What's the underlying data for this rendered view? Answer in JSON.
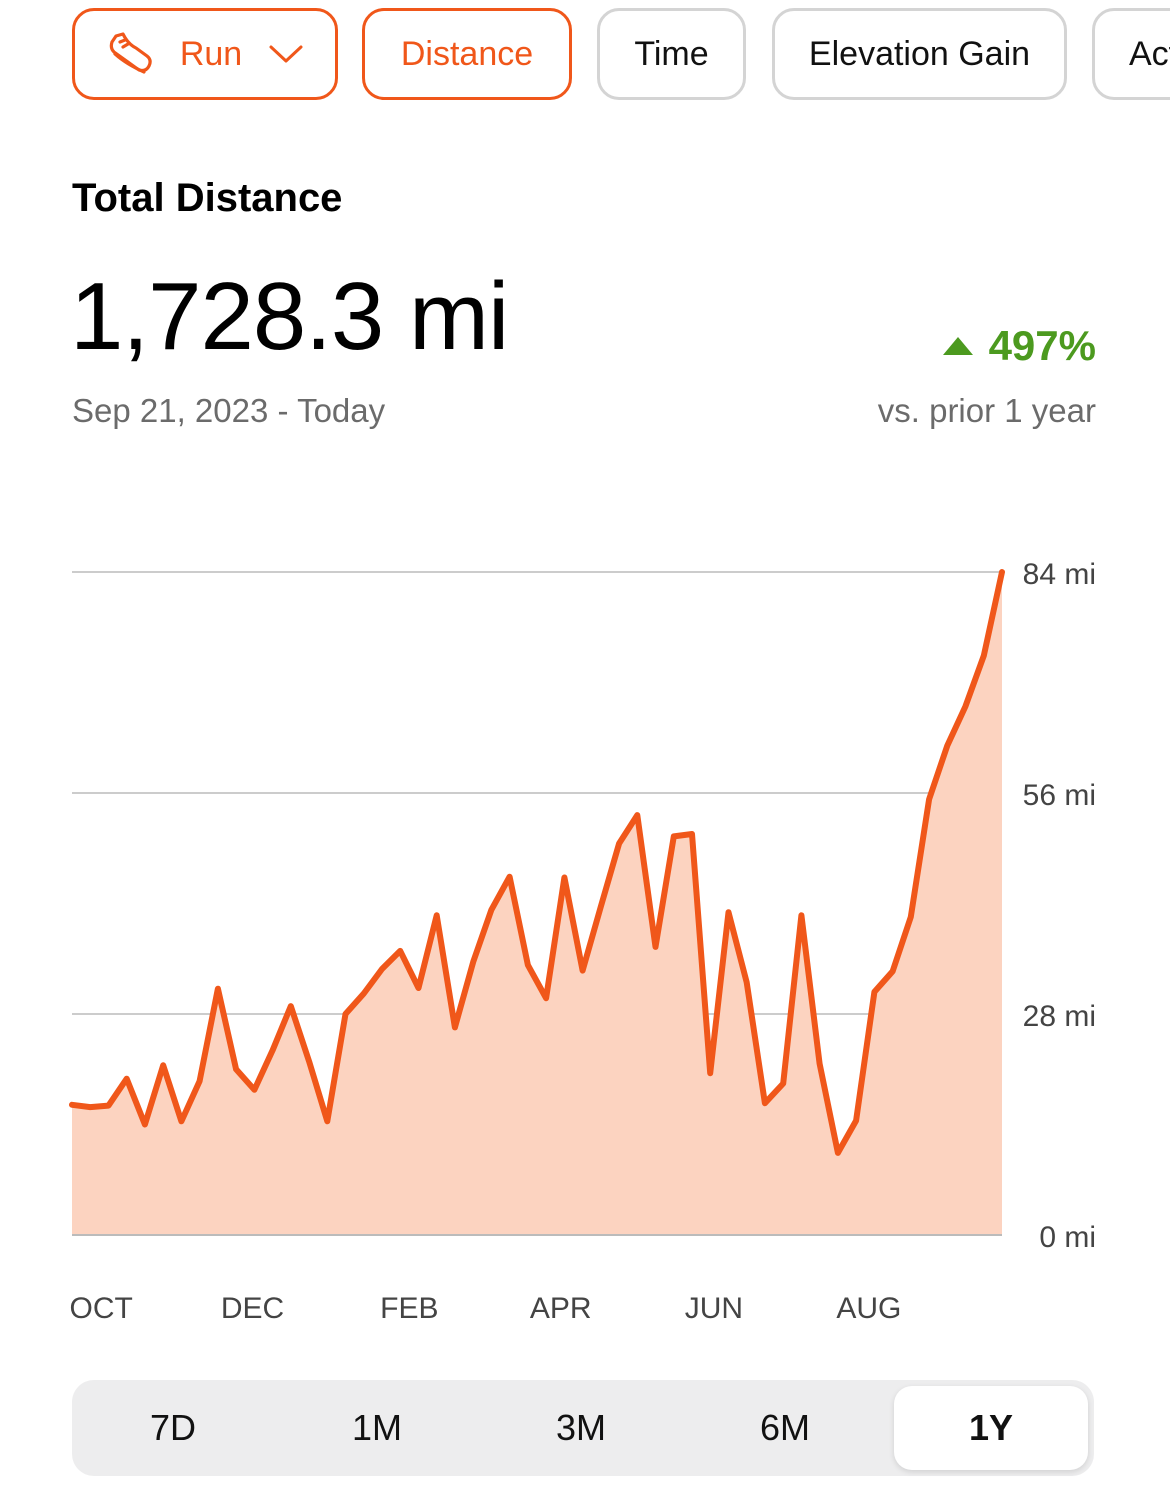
{
  "filters": {
    "sport_label": "Run",
    "sport_icon": "running-shoe-icon",
    "tabs": [
      "Distance",
      "Time",
      "Elevation Gain",
      "Activities"
    ],
    "active_tab": "Distance"
  },
  "summary": {
    "title": "Total Distance",
    "total": "1,728.3 mi",
    "date_range": "Sep 21, 2023 - Today",
    "change": "497%",
    "change_direction": "up",
    "comparison": "vs. prior 1 year"
  },
  "colors": {
    "accent": "#f0571a",
    "fill": "#fcd3c0",
    "positive": "#4c9a1f",
    "grid": "#cccccc"
  },
  "chart_data": {
    "type": "area",
    "ylim": [
      0,
      84
    ],
    "y_ticks": [
      "0 mi",
      "28 mi",
      "56 mi",
      "84 mi"
    ],
    "x_labels": [
      "OCT",
      "DEC",
      "FEB",
      "APR",
      "JUN",
      "AUG"
    ],
    "x_label_week_index": [
      1.6,
      9.9,
      18.5,
      26.8,
      35.2,
      43.7
    ],
    "grid": true,
    "unit": "mi",
    "values": [
      16.5,
      16.2,
      16.4,
      19.8,
      14.0,
      21.5,
      14.4,
      19.5,
      31.2,
      21.0,
      18.4,
      23.4,
      29.0,
      22.0,
      14.4,
      28.0,
      30.6,
      33.7,
      36.0,
      31.3,
      40.5,
      26.3,
      34.6,
      41.2,
      45.4,
      34.2,
      30.0,
      45.3,
      33.5,
      41.6,
      49.6,
      53.2,
      36.5,
      50.5,
      50.8,
      20.5,
      40.9,
      32.0,
      16.7,
      19.2,
      40.5,
      21.7,
      10.4,
      14.5,
      30.8,
      33.4,
      40.3,
      55.2,
      62.0,
      67.0,
      73.4,
      84.0
    ]
  },
  "periods": {
    "options": [
      "7D",
      "1M",
      "3M",
      "6M",
      "1Y"
    ],
    "selected": "1Y"
  }
}
